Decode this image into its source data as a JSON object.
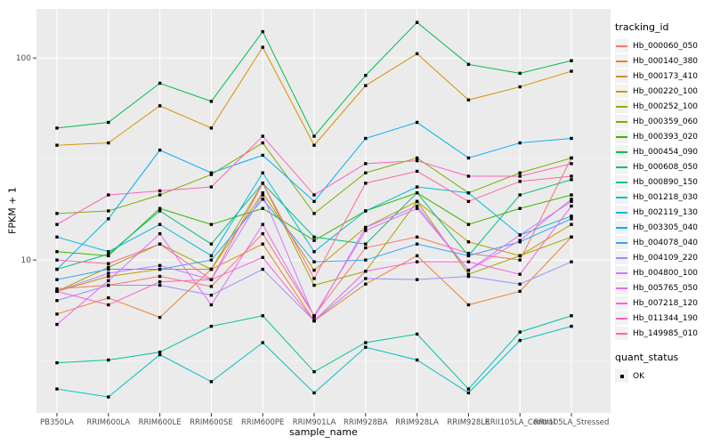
{
  "figure": {
    "background": "#FFFFFF",
    "panel_background": "#EBEBEB",
    "grid_color": "#FFFFFF",
    "axis_tick_text_color": "#4D4D4D",
    "axis_title_color": "#000000",
    "legend_key_fill": "#F2F2F2",
    "point_color": "#000000"
  },
  "chart_data": {
    "type": "line",
    "title": "",
    "xlabel": "sample_name",
    "ylabel": "FPKM + 1",
    "y_scale": "log10",
    "ylim": [
      1.75,
      175
    ],
    "y_ticks": [
      10,
      100
    ],
    "y_minor_ticks": [
      3.16,
      31.6
    ],
    "grid": true,
    "legend_position": "right",
    "legend_title": "tracking_id",
    "point_marker": "square",
    "categories": [
      "PB350LA",
      "RRIM600LA",
      "RRIM600LE",
      "RRIM600SE",
      "RRIM600PE",
      "RRIM901LA",
      "RRIM928BA",
      "RRIM928LA",
      "RRIM928LE",
      "RRII105LA_Control",
      "RRII105LA_Stressed"
    ],
    "series": [
      {
        "name": "Hb_000060_050",
        "color": "#F8766D",
        "values": [
          7.2,
          7.5,
          8.3,
          7.4,
          13.5,
          5.3,
          11.5,
          13,
          10.8,
          10,
          32
        ]
      },
      {
        "name": "Hb_000140_380",
        "color": "#EA8331",
        "values": [
          5.4,
          6.5,
          5.2,
          9,
          12,
          5,
          7.6,
          10.5,
          6,
          7,
          13
        ]
      },
      {
        "name": "Hb_000173_410",
        "color": "#D89000",
        "values": [
          37,
          38,
          58,
          45,
          113,
          37,
          73,
          105,
          62,
          72,
          86
        ]
      },
      {
        "name": "Hb_000220_100",
        "color": "#C09B00",
        "values": [
          7,
          8.3,
          9,
          9,
          21.5,
          8.9,
          14.5,
          19.5,
          12.3,
          10.5,
          15
        ]
      },
      {
        "name": "Hb_000252_100",
        "color": "#A3A500",
        "values": [
          7,
          9.2,
          12,
          9,
          24,
          7.5,
          8.8,
          19.5,
          8.5,
          10.5,
          13
        ]
      },
      {
        "name": "Hb_000359_060",
        "color": "#7CAE00",
        "values": [
          17,
          17.5,
          21,
          26.5,
          38,
          17,
          27,
          32,
          21.5,
          27,
          32
        ]
      },
      {
        "name": "Hb_000393_020",
        "color": "#39B600",
        "values": [
          11,
          10.5,
          18,
          15,
          18,
          12.5,
          17.5,
          21.5,
          15,
          18,
          21
        ]
      },
      {
        "name": "Hb_000454_090",
        "color": "#00BB4E",
        "values": [
          45,
          48,
          75,
          61,
          135,
          41,
          82,
          150,
          93,
          84,
          97
        ]
      },
      {
        "name": "Hb_000608_050",
        "color": "#00BF7D",
        "values": [
          9,
          10.7,
          17.5,
          12,
          24,
          13,
          12,
          21.5,
          10.5,
          21,
          25
        ]
      },
      {
        "name": "Hb_000890_150",
        "color": "#00C1A3",
        "values": [
          3.1,
          3.2,
          3.5,
          4.7,
          5.3,
          2.8,
          3.9,
          4.3,
          2.3,
          4.4,
          5.3
        ]
      },
      {
        "name": "Hb_001218_030",
        "color": "#00BFC4",
        "values": [
          2.3,
          2.1,
          3.4,
          2.5,
          3.9,
          2.2,
          3.7,
          3.2,
          2.2,
          4.0,
          4.7
        ]
      },
      {
        "name": "Hb_002119_130",
        "color": "#00BAE0",
        "values": [
          13,
          11,
          15,
          10.5,
          27,
          11,
          17.5,
          23,
          21.5,
          13.3,
          16.5
        ]
      },
      {
        "name": "Hb_003305_040",
        "color": "#00B0F6",
        "values": [
          9,
          16,
          35,
          27,
          33,
          19.5,
          40,
          48,
          32,
          38,
          40
        ]
      },
      {
        "name": "Hb_004078_040",
        "color": "#35A2FF",
        "values": [
          8,
          9,
          9,
          10,
          20,
          9.8,
          10,
          12,
          10.5,
          12.3,
          16
        ]
      },
      {
        "name": "Hb_004109_220",
        "color": "#9590FF",
        "values": [
          6.3,
          7.5,
          7.5,
          6.7,
          9,
          5,
          8.1,
          8,
          8.3,
          7.6,
          9.8
        ]
      },
      {
        "name": "Hb_004800_100",
        "color": "#C77CFF",
        "values": [
          7,
          8.6,
          9.4,
          8,
          21,
          5.2,
          14.5,
          18.5,
          8.9,
          13.3,
          19.5
        ]
      },
      {
        "name": "Hb_005765_050",
        "color": "#E76BF3",
        "values": [
          4.8,
          7.9,
          13.5,
          6,
          15,
          5.3,
          14,
          18,
          8.9,
          12.5,
          20
        ]
      },
      {
        "name": "Hb_007218_120",
        "color": "#FA62DB",
        "values": [
          7,
          6,
          7.8,
          8,
          10.3,
          5,
          8.8,
          9.8,
          9.8,
          8.5,
          18.5
        ]
      },
      {
        "name": "Hb_011344_190",
        "color": "#FF62BC",
        "values": [
          15,
          21,
          22,
          23,
          41,
          21,
          30,
          31,
          26,
          26,
          30
        ]
      },
      {
        "name": "Hb_149985_010",
        "color": "#FF6A98",
        "values": [
          10,
          9.6,
          12,
          8,
          24,
          8.1,
          24,
          27.5,
          19.5,
          24.5,
          26
        ]
      }
    ],
    "legend2": {
      "title": "quant_status",
      "items": [
        {
          "label": "OK",
          "marker": "square",
          "color": "#000000"
        }
      ]
    }
  }
}
